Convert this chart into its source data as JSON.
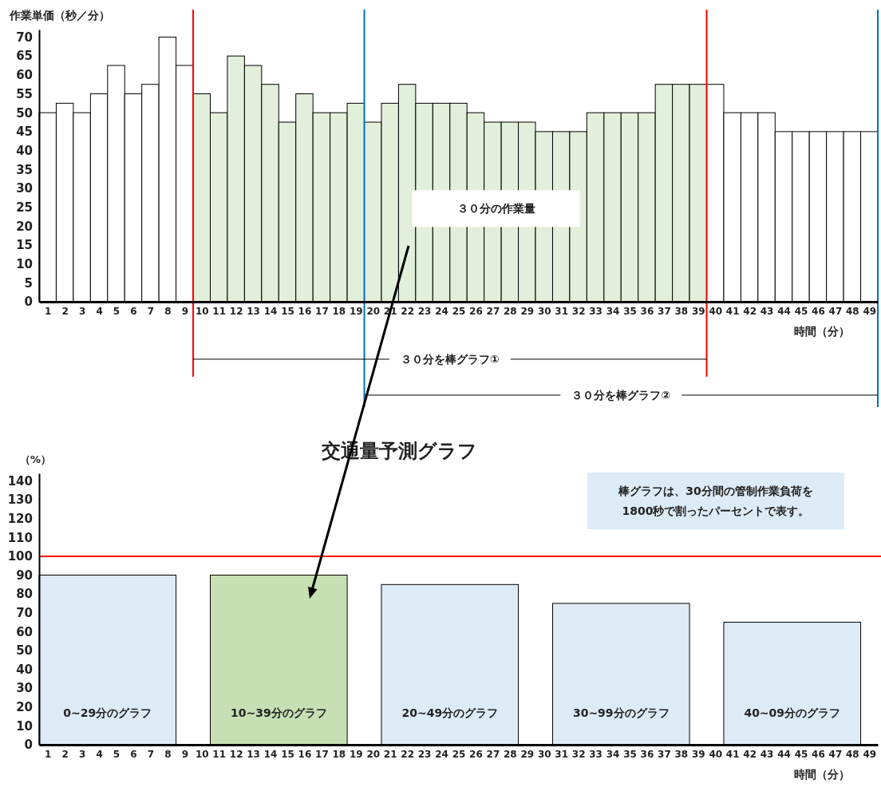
{
  "chart_data": [
    {
      "type": "bar",
      "xlabel": "時間（分）",
      "ylabel": "作業単価（秒／分）",
      "x": [
        1,
        2,
        3,
        4,
        5,
        6,
        7,
        8,
        9,
        10,
        11,
        12,
        13,
        14,
        15,
        16,
        17,
        18,
        19,
        20,
        21,
        22,
        23,
        24,
        25,
        26,
        27,
        28,
        29,
        30,
        31,
        32,
        33,
        34,
        35,
        36,
        37,
        38,
        39,
        40,
        41,
        42,
        43,
        44,
        45,
        46,
        47,
        48,
        49
      ],
      "values": [
        50,
        52.5,
        50,
        55,
        62.5,
        55,
        57.5,
        70,
        62.5,
        55,
        50,
        65,
        62.5,
        57.5,
        47.5,
        55,
        50,
        50,
        52.5,
        47.5,
        52.5,
        57.5,
        52.5,
        52.5,
        52.5,
        50,
        47.5,
        47.5,
        47.5,
        45,
        45,
        45,
        50,
        50,
        50,
        50,
        57.5,
        57.5,
        57.5,
        57.5,
        50,
        50,
        50,
        45,
        45,
        45,
        45,
        45,
        45
      ],
      "colors": [
        "#ffffff",
        "#ffffff",
        "#ffffff",
        "#ffffff",
        "#ffffff",
        "#ffffff",
        "#ffffff",
        "#ffffff",
        "#ffffff",
        "#e2efda",
        "#e2efda",
        "#e2efda",
        "#e2efda",
        "#e2efda",
        "#e2efda",
        "#e2efda",
        "#e2efda",
        "#e2efda",
        "#e2efda",
        "#e2efda",
        "#e2efda",
        "#e2efda",
        "#e2efda",
        "#e2efda",
        "#e2efda",
        "#e2efda",
        "#e2efda",
        "#e2efda",
        "#e2efda",
        "#e2efda",
        "#e2efda",
        "#e2efda",
        "#e2efda",
        "#e2efda",
        "#e2efda",
        "#e2efda",
        "#e2efda",
        "#e2efda",
        "#e2efda",
        "#ffffff",
        "#ffffff",
        "#ffffff",
        "#ffffff",
        "#ffffff",
        "#ffffff",
        "#ffffff",
        "#ffffff",
        "#ffffff",
        "#ffffff"
      ],
      "xlim": [
        0.5,
        49.5
      ],
      "xticks": [
        1,
        2,
        3,
        4,
        5,
        6,
        7,
        8,
        9,
        10,
        11,
        12,
        13,
        14,
        15,
        16,
        17,
        18,
        19,
        20,
        21,
        22,
        23,
        24,
        25,
        26,
        27,
        28,
        29,
        30,
        31,
        32,
        33,
        34,
        35,
        36,
        37,
        38,
        39,
        40,
        41,
        42,
        43,
        44,
        45,
        46,
        47,
        48,
        49
      ],
      "ylim": [
        0,
        72
      ],
      "yticks": [
        0,
        5,
        10,
        15,
        20,
        25,
        30,
        35,
        40,
        45,
        50,
        55,
        60,
        65,
        70
      ],
      "ref_lines": [
        {
          "axis": "x",
          "value": 9.5,
          "color": "#ff0000"
        },
        {
          "axis": "x",
          "value": 19.5,
          "color": "#0070c0"
        },
        {
          "axis": "x",
          "value": 39.5,
          "color": "#ff0000"
        },
        {
          "axis": "x",
          "value": 49.5,
          "color": "#0070c0"
        }
      ],
      "annotations": [
        "３０分の作業量",
        "３０分を棒グラフ①",
        "３０分を棒グラフ②"
      ]
    },
    {
      "type": "bar",
      "title": "交通量予測グラフ",
      "xlabel": "時間（分）",
      "ylabel": "（%）",
      "x": [
        4.5,
        14.5,
        24.5,
        34.5,
        44.5
      ],
      "values": [
        90,
        90,
        85,
        75,
        65
      ],
      "colors": [
        "#ddebf7",
        "#c6e0b4",
        "#ddebf7",
        "#ddebf7",
        "#ddebf7"
      ],
      "xlim": [
        0.5,
        49.5
      ],
      "xticks": [
        1,
        2,
        3,
        4,
        5,
        6,
        7,
        8,
        9,
        10,
        11,
        12,
        13,
        14,
        15,
        16,
        17,
        18,
        19,
        20,
        21,
        22,
        23,
        24,
        25,
        26,
        27,
        28,
        29,
        30,
        31,
        32,
        33,
        34,
        35,
        36,
        37,
        38,
        39,
        40,
        41,
        42,
        43,
        44,
        45,
        46,
        47,
        48,
        49
      ],
      "ylim": [
        0,
        144
      ],
      "yticks": [
        0,
        10,
        20,
        30,
        40,
        50,
        60,
        70,
        80,
        90,
        100,
        110,
        120,
        130,
        140
      ],
      "ref_lines": [
        {
          "axis": "y",
          "value": 100,
          "color": "#ff0000"
        }
      ],
      "annotations": [
        "棒グラフは、30分間の管制作業負荷を\n1800秒で割ったパーセントで表す。",
        "0~29分のグラフ",
        "10~39分のグラフ",
        "20~49分のグラフ",
        "30~99分のグラフ",
        "40~09分のグラフ"
      ]
    }
  ]
}
